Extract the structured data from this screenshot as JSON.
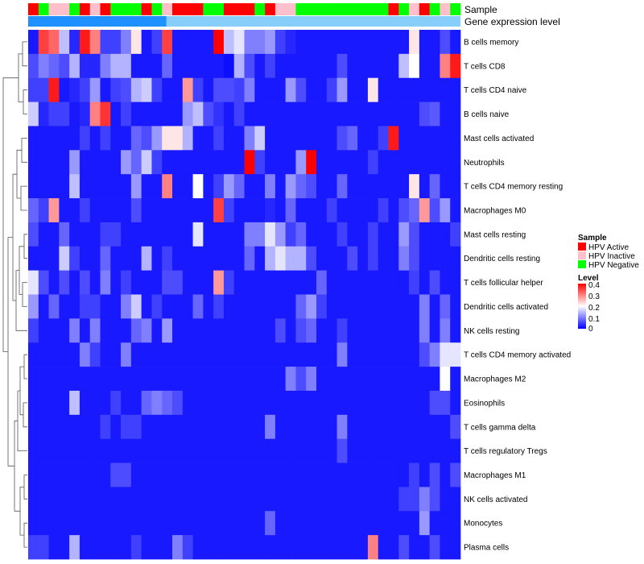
{
  "chart_data": {
    "type": "heatmap",
    "annotation_titles": [
      "Sample",
      "Gene expression level"
    ],
    "annotation_sample": [
      "A",
      "N",
      "I",
      "I",
      "N",
      "A",
      "I",
      "A",
      "N",
      "N",
      "N",
      "A",
      "N",
      "I",
      "A",
      "A",
      "A",
      "N",
      "N",
      "A",
      "A",
      "A",
      "N",
      "A",
      "I",
      "I",
      "N",
      "N",
      "N",
      "N",
      "N",
      "N",
      "N",
      "N",
      "N",
      "A",
      "N",
      "I",
      "A",
      "N",
      "I",
      "N"
    ],
    "annotation_level_colors": [
      "#1e90ff",
      "#87cefa"
    ],
    "rows": [
      "B cells memory",
      "T cells CD8",
      "T cells CD4 naive",
      "B cells naive",
      "Mast cells activated",
      "Neutrophils",
      "T cells CD4 memory resting",
      "Macrophages M0",
      "Mast cells resting",
      "Dendritic cells resting",
      "T cells follicular helper",
      "Dendritic cells activated",
      "NK cells resting",
      "T cells CD4 memory activated",
      "Macrophages M2",
      "Eosinophils",
      "T cells gamma delta",
      "T cells regulatory  Tregs",
      "Macrophages M1",
      "NK cells activated",
      "Monocytes",
      "Plasma cells"
    ],
    "columns": 42,
    "values": [
      [
        0.02,
        0.35,
        0.32,
        0.15,
        0.03,
        0.38,
        0.3,
        0.05,
        0.05,
        0.1,
        0.22,
        0.02,
        0.05,
        0.35,
        0.02,
        0.02,
        0.02,
        0.02,
        0.4,
        0.15,
        0.18,
        0.1,
        0.1,
        0.12,
        0.05,
        0.03,
        0.02,
        0.02,
        0.02,
        0.02,
        0.02,
        0.02,
        0.02,
        0.02,
        0.02,
        0.02,
        0.02,
        0.22,
        0.02,
        0.02,
        0.06,
        0.02
      ],
      [
        0.06,
        0.1,
        0.08,
        0.06,
        0.14,
        0.03,
        0.03,
        0.1,
        0.14,
        0.14,
        0.02,
        0.02,
        0.02,
        0.08,
        0.02,
        0.02,
        0.02,
        0.02,
        0.02,
        0.01,
        0.14,
        0.06,
        0.02,
        0.05,
        0.02,
        0.02,
        0.02,
        0.02,
        0.02,
        0.02,
        0.06,
        0.02,
        0.02,
        0.02,
        0.02,
        0.02,
        0.15,
        0.2,
        0.02,
        0.02,
        0.3,
        0.38
      ],
      [
        0.05,
        0.05,
        0.38,
        0.02,
        0.03,
        0.05,
        0.12,
        0.02,
        0.05,
        0.06,
        0.14,
        0.16,
        0.05,
        0.02,
        0.02,
        0.28,
        0.05,
        0.02,
        0.06,
        0.06,
        0.05,
        0.1,
        0.02,
        0.02,
        0.02,
        0.12,
        0.06,
        0.02,
        0.02,
        0.05,
        0.12,
        0.02,
        0.02,
        0.22,
        0.02,
        0.02,
        0.02,
        0.02,
        0.02,
        0.02,
        0.02,
        0.02
      ],
      [
        0.16,
        0.03,
        0.05,
        0.05,
        0.02,
        0.03,
        0.3,
        0.36,
        0.02,
        0.05,
        0.02,
        0.02,
        0.02,
        0.02,
        0.02,
        0.12,
        0.15,
        0.06,
        0.04,
        0.02,
        0.05,
        0.02,
        0.02,
        0.02,
        0.02,
        0.02,
        0.02,
        0.02,
        0.02,
        0.02,
        0.02,
        0.02,
        0.02,
        0.02,
        0.02,
        0.02,
        0.02,
        0.02,
        0.06,
        0.07,
        0.02,
        0.02
      ],
      [
        0.02,
        0.02,
        0.02,
        0.02,
        0.02,
        0.05,
        0.02,
        0.05,
        0.02,
        0.02,
        0.08,
        0.06,
        0.12,
        0.22,
        0.22,
        0.14,
        0.02,
        0.02,
        0.05,
        0.02,
        0.02,
        0.1,
        0.16,
        0.02,
        0.02,
        0.02,
        0.02,
        0.02,
        0.02,
        0.02,
        0.06,
        0.08,
        0.02,
        0.02,
        0.05,
        0.38,
        0.02,
        0.02,
        0.02,
        0.02,
        0.02,
        0.02
      ],
      [
        0.02,
        0.02,
        0.02,
        0.02,
        0.12,
        0.02,
        0.02,
        0.02,
        0.02,
        0.12,
        0.08,
        0.16,
        0.05,
        0.02,
        0.02,
        0.02,
        0.02,
        0.02,
        0.02,
        0.02,
        0.02,
        0.4,
        0.05,
        0.02,
        0.02,
        0.02,
        0.12,
        0.4,
        0.02,
        0.02,
        0.02,
        0.02,
        0.02,
        0.05,
        0.02,
        0.02,
        0.02,
        0.02,
        0.02,
        0.02,
        0.02,
        0.02
      ],
      [
        0.02,
        0.02,
        0.02,
        0.02,
        0.15,
        0.02,
        0.02,
        0.02,
        0.02,
        0.02,
        0.12,
        0.02,
        0.02,
        0.3,
        0.02,
        0.02,
        0.2,
        0.02,
        0.05,
        0.12,
        0.08,
        0.02,
        0.02,
        0.1,
        0.02,
        0.12,
        0.08,
        0.06,
        0.02,
        0.02,
        0.08,
        0.02,
        0.02,
        0.02,
        0.02,
        0.02,
        0.02,
        0.22,
        0.02,
        0.08,
        0.02,
        0.02
      ],
      [
        0.08,
        0.05,
        0.28,
        0.02,
        0.02,
        0.05,
        0.02,
        0.02,
        0.02,
        0.02,
        0.06,
        0.02,
        0.02,
        0.02,
        0.02,
        0.02,
        0.02,
        0.02,
        0.35,
        0.05,
        0.02,
        0.02,
        0.02,
        0.03,
        0.02,
        0.08,
        0.02,
        0.02,
        0.02,
        0.05,
        0.02,
        0.02,
        0.02,
        0.02,
        0.05,
        0.02,
        0.06,
        0.08,
        0.28,
        0.06,
        0.12,
        0.02
      ],
      [
        0.06,
        0.02,
        0.02,
        0.08,
        0.02,
        0.02,
        0.02,
        0.05,
        0.05,
        0.02,
        0.02,
        0.02,
        0.02,
        0.02,
        0.02,
        0.02,
        0.18,
        0.02,
        0.02,
        0.02,
        0.02,
        0.1,
        0.1,
        0.18,
        0.12,
        0.05,
        0.08,
        0.02,
        0.02,
        0.02,
        0.05,
        0.02,
        0.02,
        0.05,
        0.02,
        0.02,
        0.12,
        0.06,
        0.02,
        0.02,
        0.02,
        0.05
      ],
      [
        0.02,
        0.02,
        0.02,
        0.16,
        0.05,
        0.02,
        0.02,
        0.08,
        0.02,
        0.02,
        0.02,
        0.14,
        0.02,
        0.05,
        0.02,
        0.02,
        0.02,
        0.02,
        0.02,
        0.02,
        0.02,
        0.08,
        0.02,
        0.14,
        0.18,
        0.14,
        0.14,
        0.06,
        0.02,
        0.02,
        0.02,
        0.06,
        0.02,
        0.05,
        0.02,
        0.02,
        0.1,
        0.06,
        0.02,
        0.02,
        0.02,
        0.02
      ],
      [
        0.18,
        0.06,
        0.02,
        0.06,
        0.02,
        0.06,
        0.02,
        0.1,
        0.02,
        0.05,
        0.02,
        0.02,
        0.02,
        0.06,
        0.06,
        0.02,
        0.02,
        0.02,
        0.28,
        0.05,
        0.02,
        0.02,
        0.02,
        0.02,
        0.02,
        0.02,
        0.02,
        0.02,
        0.08,
        0.02,
        0.02,
        0.02,
        0.02,
        0.02,
        0.02,
        0.02,
        0.02,
        0.05,
        0.02,
        0.06,
        0.02,
        0.02
      ],
      [
        0.12,
        0.02,
        0.08,
        0.02,
        0.02,
        0.05,
        0.05,
        0.02,
        0.02,
        0.1,
        0.16,
        0.02,
        0.05,
        0.02,
        0.02,
        0.02,
        0.08,
        0.02,
        0.05,
        0.02,
        0.02,
        0.02,
        0.02,
        0.02,
        0.02,
        0.02,
        0.08,
        0.12,
        0.05,
        0.02,
        0.02,
        0.02,
        0.02,
        0.02,
        0.02,
        0.02,
        0.02,
        0.02,
        0.1,
        0.02,
        0.08,
        0.02
      ],
      [
        0.05,
        0.02,
        0.02,
        0.02,
        0.1,
        0.02,
        0.1,
        0.02,
        0.02,
        0.02,
        0.08,
        0.1,
        0.02,
        0.12,
        0.02,
        0.02,
        0.02,
        0.02,
        0.02,
        0.02,
        0.02,
        0.02,
        0.02,
        0.02,
        0.06,
        0.02,
        0.06,
        0.08,
        0.02,
        0.02,
        0.05,
        0.02,
        0.02,
        0.02,
        0.02,
        0.02,
        0.02,
        0.02,
        0.1,
        0.02,
        0.1,
        0.02
      ],
      [
        0.02,
        0.02,
        0.02,
        0.02,
        0.02,
        0.1,
        0.05,
        0.02,
        0.02,
        0.1,
        0.02,
        0.02,
        0.02,
        0.02,
        0.02,
        0.02,
        0.02,
        0.02,
        0.02,
        0.02,
        0.02,
        0.02,
        0.02,
        0.02,
        0.02,
        0.02,
        0.02,
        0.02,
        0.02,
        0.02,
        0.1,
        0.02,
        0.02,
        0.02,
        0.02,
        0.02,
        0.02,
        0.02,
        0.06,
        0.1,
        0.18,
        0.18
      ],
      [
        0.02,
        0.02,
        0.02,
        0.02,
        0.02,
        0.02,
        0.02,
        0.02,
        0.02,
        0.02,
        0.02,
        0.02,
        0.02,
        0.02,
        0.02,
        0.02,
        0.02,
        0.02,
        0.02,
        0.02,
        0.02,
        0.02,
        0.02,
        0.02,
        0.02,
        0.1,
        0.06,
        0.1,
        0.02,
        0.02,
        0.02,
        0.02,
        0.02,
        0.02,
        0.02,
        0.02,
        0.02,
        0.02,
        0.02,
        0.02,
        0.2,
        0.02
      ],
      [
        0.02,
        0.02,
        0.02,
        0.02,
        0.15,
        0.02,
        0.02,
        0.02,
        0.05,
        0.02,
        0.02,
        0.08,
        0.1,
        0.08,
        0.06,
        0.02,
        0.02,
        0.02,
        0.02,
        0.02,
        0.02,
        0.02,
        0.02,
        0.02,
        0.02,
        0.02,
        0.02,
        0.02,
        0.02,
        0.02,
        0.02,
        0.02,
        0.02,
        0.02,
        0.02,
        0.02,
        0.02,
        0.02,
        0.02,
        0.06,
        0.06,
        0.02
      ],
      [
        0.02,
        0.02,
        0.02,
        0.02,
        0.02,
        0.02,
        0.02,
        0.05,
        0.02,
        0.05,
        0.05,
        0.02,
        0.02,
        0.02,
        0.02,
        0.02,
        0.02,
        0.02,
        0.02,
        0.02,
        0.02,
        0.02,
        0.02,
        0.1,
        0.02,
        0.02,
        0.02,
        0.02,
        0.02,
        0.02,
        0.1,
        0.02,
        0.02,
        0.02,
        0.02,
        0.02,
        0.02,
        0.02,
        0.02,
        0.02,
        0.02,
        0.06
      ],
      [
        0.02,
        0.02,
        0.02,
        0.02,
        0.02,
        0.02,
        0.02,
        0.02,
        0.02,
        0.02,
        0.02,
        0.02,
        0.02,
        0.02,
        0.02,
        0.02,
        0.02,
        0.02,
        0.02,
        0.02,
        0.02,
        0.02,
        0.02,
        0.02,
        0.02,
        0.02,
        0.02,
        0.02,
        0.02,
        0.02,
        0.06,
        0.02,
        0.02,
        0.02,
        0.02,
        0.02,
        0.02,
        0.02,
        0.02,
        0.02,
        0.02,
        0.02
      ],
      [
        0.02,
        0.02,
        0.02,
        0.02,
        0.02,
        0.02,
        0.02,
        0.02,
        0.06,
        0.06,
        0.02,
        0.02,
        0.02,
        0.02,
        0.02,
        0.02,
        0.02,
        0.02,
        0.02,
        0.02,
        0.02,
        0.02,
        0.02,
        0.02,
        0.02,
        0.02,
        0.02,
        0.02,
        0.02,
        0.02,
        0.02,
        0.02,
        0.02,
        0.02,
        0.02,
        0.02,
        0.02,
        0.05,
        0.02,
        0.06,
        0.02,
        0.06
      ],
      [
        0.02,
        0.02,
        0.02,
        0.02,
        0.02,
        0.02,
        0.02,
        0.02,
        0.02,
        0.02,
        0.02,
        0.02,
        0.02,
        0.02,
        0.02,
        0.02,
        0.02,
        0.02,
        0.02,
        0.02,
        0.02,
        0.02,
        0.02,
        0.02,
        0.02,
        0.02,
        0.02,
        0.02,
        0.02,
        0.02,
        0.02,
        0.02,
        0.02,
        0.02,
        0.02,
        0.02,
        0.05,
        0.05,
        0.1,
        0.06,
        0.02,
        0.02
      ],
      [
        0.02,
        0.02,
        0.02,
        0.02,
        0.02,
        0.02,
        0.02,
        0.02,
        0.02,
        0.02,
        0.02,
        0.02,
        0.02,
        0.02,
        0.02,
        0.02,
        0.02,
        0.02,
        0.02,
        0.02,
        0.02,
        0.02,
        0.02,
        0.08,
        0.02,
        0.02,
        0.02,
        0.02,
        0.02,
        0.02,
        0.02,
        0.02,
        0.02,
        0.02,
        0.02,
        0.02,
        0.02,
        0.02,
        0.12,
        0.02,
        0.02,
        0.02
      ],
      [
        0.05,
        0.05,
        0.02,
        0.02,
        0.14,
        0.02,
        0.02,
        0.02,
        0.02,
        0.02,
        0.05,
        0.02,
        0.02,
        0.02,
        0.1,
        0.05,
        0.02,
        0.02,
        0.02,
        0.02,
        0.02,
        0.02,
        0.02,
        0.02,
        0.02,
        0.02,
        0.02,
        0.02,
        0.02,
        0.02,
        0.02,
        0.02,
        0.02,
        0.3,
        0.02,
        0.02,
        0.06,
        0.02,
        0.02,
        0.06,
        0.02,
        0.02
      ]
    ],
    "legend": {
      "sample_title": "Sample",
      "sample_entries": [
        {
          "label": "HPV Active",
          "color": "#ff0000"
        },
        {
          "label": "HPV Inactive",
          "color": "#ffc0cb"
        },
        {
          "label": "HPV Negative",
          "color": "#00ff00"
        }
      ],
      "level_title": "Level",
      "level_ticks": [
        "0.4",
        "0.3",
        "0.2",
        "0.1",
        "0"
      ],
      "range": [
        0,
        0.4
      ],
      "colors": [
        "#0000ff",
        "#ffffff",
        "#ff0000"
      ]
    }
  }
}
